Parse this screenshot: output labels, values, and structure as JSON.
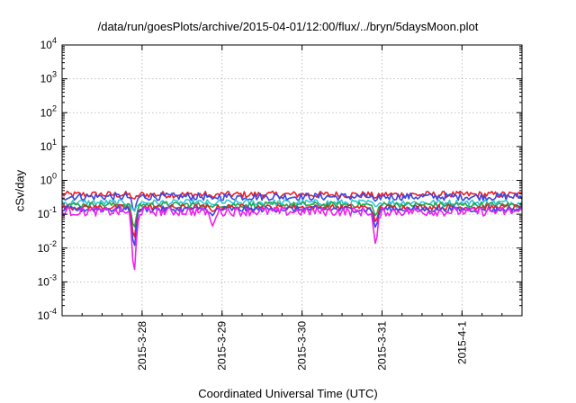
{
  "chart_data": {
    "type": "line",
    "title": "/data/run/goesPlots/archive/2015-04-01/12:00/flux/../bryn/5daysMoon.plot",
    "xlabel": "Coordinated Universal Time (UTC)",
    "ylabel": "cSv/day",
    "yscale": "log",
    "ylim": [
      0.0001,
      10000
    ],
    "xlim_days": [
      0,
      5.75
    ],
    "grid": true,
    "y_ticks": [
      {
        "value": 0.0001,
        "base": "10",
        "exp": "-4"
      },
      {
        "value": 0.001,
        "base": "10",
        "exp": "-3"
      },
      {
        "value": 0.01,
        "base": "10",
        "exp": "-2"
      },
      {
        "value": 0.1,
        "base": "10",
        "exp": "-1"
      },
      {
        "value": 1,
        "base": "10",
        "exp": "0"
      },
      {
        "value": 10,
        "base": "10",
        "exp": "1"
      },
      {
        "value": 100,
        "base": "10",
        "exp": "2"
      },
      {
        "value": 1000,
        "base": "10",
        "exp": "3"
      },
      {
        "value": 10000,
        "base": "10",
        "exp": "4"
      }
    ],
    "x_ticks": [
      {
        "day": 1,
        "label": "2015-3-28"
      },
      {
        "day": 2,
        "label": "2015-3-29"
      },
      {
        "day": 3,
        "label": "2015-3-30"
      },
      {
        "day": 4,
        "label": "2015-3-31"
      },
      {
        "day": 5,
        "label": "2015-4-1"
      }
    ],
    "series": [
      {
        "color": "#e8202a",
        "baseline": 0.38,
        "amplitude": 0.22
      },
      {
        "color": "#3a48e0",
        "baseline": 0.33,
        "amplitude": 0.25
      },
      {
        "color": "#35c6d6",
        "baseline": 0.22,
        "amplitude": 0.2
      },
      {
        "color": "#27a84a",
        "baseline": 0.19,
        "amplitude": 0.18
      },
      {
        "color": "#e8202a",
        "baseline": 0.16,
        "amplitude": 0.18
      },
      {
        "color": "#3a48e0",
        "baseline": 0.14,
        "amplitude": 0.2
      },
      {
        "color": "#ee22ee",
        "baseline": 0.12,
        "amplitude": 0.3
      }
    ],
    "dips": [
      {
        "day": 0.9,
        "min": [
          0.28,
          0.12,
          0.12,
          0.04,
          0.02,
          0.011,
          0.002
        ]
      },
      {
        "day": 1.88,
        "min": [
          0.32,
          0.28,
          0.19,
          0.16,
          0.12,
          0.09,
          0.045
        ]
      },
      {
        "day": 3.92,
        "min": [
          0.3,
          0.24,
          0.17,
          0.09,
          0.06,
          0.04,
          0.013
        ]
      }
    ]
  }
}
